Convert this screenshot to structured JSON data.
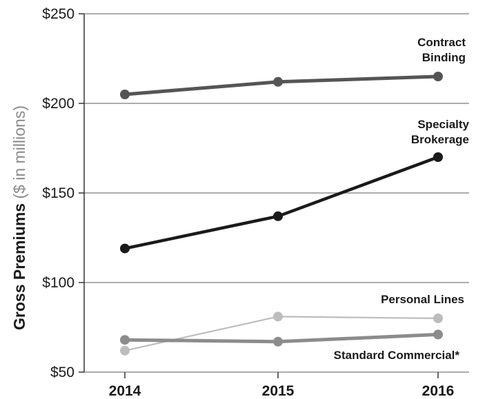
{
  "chart_data": {
    "type": "line",
    "x": [
      "2014",
      "2015",
      "2016"
    ],
    "ylim": [
      50,
      250
    ],
    "y_ticks": [
      "$250",
      "$200",
      "$150",
      "$100",
      "$50"
    ],
    "y_tick_values": [
      250,
      200,
      150,
      100,
      50
    ],
    "ylabel_main": "Gross Premiums",
    "ylabel_sub": " ($ in millions)",
    "grid": true,
    "series": [
      {
        "name": "Contract Binding",
        "label_lines": [
          "Contract",
          "Binding"
        ],
        "values": [
          205,
          212,
          215
        ],
        "color": "#555555"
      },
      {
        "name": "Specialty Brokerage",
        "label_lines": [
          "Specialty",
          "Brokerage"
        ],
        "values": [
          119,
          137,
          170
        ],
        "color": "#1a1a1a"
      },
      {
        "name": "Personal Lines",
        "label_lines": [
          "Personal Lines"
        ],
        "values": [
          62,
          81,
          80
        ],
        "color": "#bdbdbd"
      },
      {
        "name": "Standard Commercial*",
        "label_lines": [
          "Standard Commercial*"
        ],
        "values": [
          68,
          67,
          71
        ],
        "color": "#8c8c8c"
      }
    ]
  }
}
